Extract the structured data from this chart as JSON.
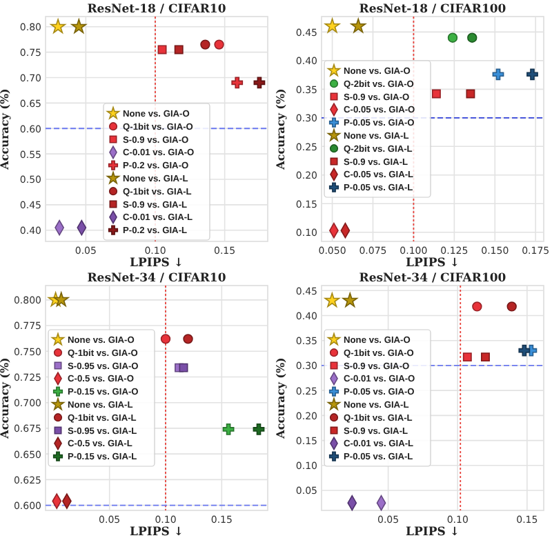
{
  "chart_data": [
    {
      "type": "scatter",
      "title": "ResNet-18 / CIFAR10",
      "xlabel": "LPIPS ↓",
      "ylabel": "Accuracy (%)",
      "grid": true,
      "legend": "bottom",
      "xlim": [
        0.021,
        0.181
      ],
      "ylim": [
        0.378,
        0.82
      ],
      "xticks": [
        0.05,
        {
          "value": 0.1,
          "label": "0.10"
        },
        0.15
      ],
      "yticks": [
        {
          "value": 0.4,
          "label": "0.40"
        },
        0.45,
        {
          "value": 0.5,
          "label": "0.50"
        },
        0.55,
        {
          "value": 0.6,
          "label": "0.60"
        },
        0.65,
        {
          "value": 0.7,
          "label": "0.70"
        },
        0.75,
        {
          "value": 0.8,
          "label": "0.80"
        }
      ],
      "ref_lines": [
        {
          "axis": "x",
          "value": 0.1,
          "color": "#e8403a",
          "line_style": "dotted"
        },
        {
          "axis": "y",
          "value": 0.6,
          "color": "#6a78f0",
          "line_style": "dashed"
        }
      ],
      "series": [
        {
          "name": "None vs. GIA-O",
          "marker": "star",
          "color": "#ffd21f",
          "x": [
            0.03
          ],
          "values": [
            0.8
          ]
        },
        {
          "name": "Q-1bit vs. GIA-O",
          "marker": "circle",
          "color": "#e8333a",
          "x": [
            0.146
          ],
          "values": [
            0.765
          ]
        },
        {
          "name": "S-0.9 vs. GIA-O",
          "marker": "square",
          "color": "#e8333a",
          "x": [
            0.105
          ],
          "values": [
            0.755
          ]
        },
        {
          "name": "C-0.01 vs. GIA-O",
          "marker": "diamond",
          "color": "#9b6fc8",
          "x": [
            0.031
          ],
          "values": [
            0.405
          ]
        },
        {
          "name": "P-0.2 vs. GIA-O",
          "marker": "cross",
          "color": "#e8333a",
          "x": [
            0.159
          ],
          "values": [
            0.69
          ]
        },
        {
          "name": "None vs. GIA-L",
          "marker": "star",
          "color": "#b8960c",
          "x": [
            0.045
          ],
          "values": [
            0.8
          ]
        },
        {
          "name": "Q-1bit vs. GIA-L",
          "marker": "circle",
          "color": "#b52525",
          "x": [
            0.136
          ],
          "values": [
            0.765
          ]
        },
        {
          "name": "S-0.9 vs. GIA-L",
          "marker": "square",
          "color": "#b52525",
          "x": [
            0.117
          ],
          "values": [
            0.755
          ]
        },
        {
          "name": "C-0.01 vs. GIA-L",
          "marker": "diamond",
          "color": "#7a4fa8",
          "x": [
            0.047
          ],
          "values": [
            0.405
          ]
        },
        {
          "name": "P-0.2 vs. GIA-L",
          "marker": "cross",
          "color": "#8b1a1a",
          "x": [
            0.175
          ],
          "values": [
            0.69
          ]
        }
      ]
    },
    {
      "type": "scatter",
      "title": "ResNet-18 / CIFAR100",
      "xlabel": "LPIPS ↓",
      "ylabel": "Accuracy (%)",
      "grid": true,
      "legend": "left",
      "xlim": [
        0.0434,
        0.18
      ],
      "ylim": [
        0.084,
        0.477
      ],
      "xticks": [
        {
          "value": 0.05,
          "label": "0.050"
        },
        0.075,
        {
          "value": 0.1,
          "label": "0.100"
        },
        0.125,
        {
          "value": 0.15,
          "label": "0.150"
        },
        0.175
      ],
      "yticks": [
        {
          "value": 0.1,
          "label": "0.10"
        },
        0.15,
        {
          "value": 0.2,
          "label": "0.20"
        },
        0.25,
        {
          "value": 0.3,
          "label": "0.30"
        },
        0.35,
        {
          "value": 0.4,
          "label": "0.40"
        },
        0.45
      ],
      "ref_lines": [
        {
          "axis": "x",
          "value": 0.1,
          "color": "#e8403a",
          "line_style": "dotted"
        },
        {
          "axis": "y",
          "value": 0.3,
          "color": "#3040d8",
          "line_style": "dashed"
        }
      ],
      "series": [
        {
          "name": "None vs. GIA-O",
          "marker": "star",
          "color": "#ffd21f",
          "x": [
            0.05
          ],
          "values": [
            0.46
          ]
        },
        {
          "name": "Q-2bit vs. GIA-O",
          "marker": "circle",
          "color": "#3cb043",
          "x": [
            0.124
          ],
          "values": [
            0.44
          ]
        },
        {
          "name": "S-0.9 vs. GIA-O",
          "marker": "square",
          "color": "#e8333a",
          "x": [
            0.114
          ],
          "values": [
            0.342
          ]
        },
        {
          "name": "C-0.05 vs. GIA-O",
          "marker": "diamond",
          "color": "#e8333a",
          "x": [
            0.051
          ],
          "values": [
            0.103
          ]
        },
        {
          "name": "P-0.05 vs. GIA-O",
          "marker": "cross",
          "color": "#3a8fd8",
          "x": [
            0.152
          ],
          "values": [
            0.376
          ]
        },
        {
          "name": "None vs. GIA-L",
          "marker": "star",
          "color": "#b8960c",
          "x": [
            0.066
          ],
          "values": [
            0.46
          ]
        },
        {
          "name": "Q-2bit vs. GIA-L",
          "marker": "circle",
          "color": "#2a8a30",
          "x": [
            0.136
          ],
          "values": [
            0.44
          ]
        },
        {
          "name": "S-0.9 vs. GIA-L",
          "marker": "square",
          "color": "#c82828",
          "x": [
            0.135
          ],
          "values": [
            0.342
          ]
        },
        {
          "name": "C-0.05 vs. GIA-L",
          "marker": "diamond",
          "color": "#c82828",
          "x": [
            0.058
          ],
          "values": [
            0.103
          ]
        },
        {
          "name": "P-0.05 vs. GIA-L",
          "marker": "cross",
          "color": "#1f4e79",
          "x": [
            0.173
          ],
          "values": [
            0.376
          ]
        }
      ]
    },
    {
      "type": "scatter",
      "title": "ResNet-34 / CIFAR10",
      "xlabel": "LPIPS ↓",
      "ylabel": "Accuracy (%)",
      "grid": true,
      "legend": "left",
      "xlim": [
        -0.007,
        0.191
      ],
      "ylim": [
        0.595,
        0.814
      ],
      "xticks": [
        0.05,
        {
          "value": 0.1,
          "label": "0.10"
        },
        0.15
      ],
      "yticks": [
        {
          "value": 0.6,
          "label": "0.600"
        },
        0.625,
        {
          "value": 0.65,
          "label": "0.650"
        },
        0.675,
        {
          "value": 0.7,
          "label": "0.700"
        },
        0.725,
        {
          "value": 0.75,
          "label": "0.750"
        },
        0.775,
        {
          "value": 0.8,
          "label": "0.800"
        }
      ],
      "ref_lines": [
        {
          "axis": "x",
          "value": 0.1,
          "color": "#e8403a",
          "line_style": "dotted"
        },
        {
          "axis": "y",
          "value": 0.6,
          "color": "#6a78f0",
          "line_style": "dashed"
        }
      ],
      "series": [
        {
          "name": "None vs. GIA-O",
          "marker": "star",
          "color": "#ffd21f",
          "x": [
            0.002
          ],
          "values": [
            0.8
          ]
        },
        {
          "name": "Q-1bit vs. GIA-O",
          "marker": "circle",
          "color": "#e8333a",
          "x": [
            0.1
          ],
          "values": [
            0.762
          ]
        },
        {
          "name": "S-0.95 vs. GIA-O",
          "marker": "square",
          "color": "#9b6fc8",
          "x": [
            0.112
          ],
          "values": [
            0.734
          ]
        },
        {
          "name": "C-0.5 vs. GIA-O",
          "marker": "diamond",
          "color": "#e8333a",
          "x": [
            0.003
          ],
          "values": [
            0.604
          ]
        },
        {
          "name": "P-0.15 vs. GIA-O",
          "marker": "cross",
          "color": "#3cb043",
          "x": [
            0.156
          ],
          "values": [
            0.674
          ]
        },
        {
          "name": "None vs. GIA-L",
          "marker": "star",
          "color": "#b8960c",
          "x": [
            0.007
          ],
          "values": [
            0.8
          ]
        },
        {
          "name": "Q-1bit vs. GIA-L",
          "marker": "circle",
          "color": "#b52525",
          "x": [
            0.12
          ],
          "values": [
            0.762
          ]
        },
        {
          "name": "S-0.95 vs. GIA-L",
          "marker": "square",
          "color": "#7a4fa8",
          "x": [
            0.116
          ],
          "values": [
            0.734
          ]
        },
        {
          "name": "C-0.5 vs. GIA-L",
          "marker": "diamond",
          "color": "#b52525",
          "x": [
            0.012
          ],
          "values": [
            0.604
          ]
        },
        {
          "name": "P-0.15 vs. GIA-L",
          "marker": "cross",
          "color": "#1e6b23",
          "x": [
            0.183
          ],
          "values": [
            0.674
          ]
        }
      ]
    },
    {
      "type": "scatter",
      "title": "ResNet-34 / CIFAR100",
      "xlabel": "LPIPS ↓",
      "ylabel": "Accuracy (%)",
      "grid": true,
      "legend": "left",
      "xlim": [
        0.002,
        0.162
      ],
      "ylim": [
        0.01,
        0.46
      ],
      "xticks": [
        0.05,
        {
          "value": 0.1,
          "label": "0.10"
        },
        0.15
      ],
      "yticks": [
        0.05,
        {
          "value": 0.1,
          "label": "0.10"
        },
        0.15,
        {
          "value": 0.2,
          "label": "0.20"
        },
        0.25,
        {
          "value": 0.3,
          "label": "0.30"
        },
        0.35,
        {
          "value": 0.4,
          "label": "0.40"
        },
        0.45
      ],
      "ref_lines": [
        {
          "axis": "x",
          "value": 0.102,
          "color": "#e8403a",
          "line_style": "dotted"
        },
        {
          "axis": "y",
          "value": 0.3,
          "color": "#6a78f0",
          "line_style": "dashed"
        }
      ],
      "series": [
        {
          "name": "None vs. GIA-O",
          "marker": "star",
          "color": "#ffd21f",
          "x": [
            0.0096
          ],
          "values": [
            0.43
          ]
        },
        {
          "name": "Q-1bit vs. GIA-O",
          "marker": "circle",
          "color": "#e8333a",
          "x": [
            0.114
          ],
          "values": [
            0.418
          ]
        },
        {
          "name": "S-0.9 vs. GIA-O",
          "marker": "square",
          "color": "#e8333a",
          "x": [
            0.107
          ],
          "values": [
            0.317
          ]
        },
        {
          "name": "C-0.01 vs. GIA-O",
          "marker": "diamond",
          "color": "#9b6fc8",
          "x": [
            0.045
          ],
          "values": [
            0.025
          ]
        },
        {
          "name": "P-0.05 vs. GIA-O",
          "marker": "cross",
          "color": "#3a8fd8",
          "x": [
            0.153
          ],
          "values": [
            0.33
          ]
        },
        {
          "name": "None vs. GIA-L",
          "marker": "star",
          "color": "#b8960c",
          "x": [
            0.0225
          ],
          "values": [
            0.43
          ]
        },
        {
          "name": "Q-1bit vs. GIA-L",
          "marker": "circle",
          "color": "#b52525",
          "x": [
            0.139
          ],
          "values": [
            0.418
          ]
        },
        {
          "name": "S-0.9 vs. GIA-L",
          "marker": "square",
          "color": "#c82828",
          "x": [
            0.12
          ],
          "values": [
            0.317
          ]
        },
        {
          "name": "C-0.01 vs. GIA-L",
          "marker": "diamond",
          "color": "#7a4fa8",
          "x": [
            0.024
          ],
          "values": [
            0.025
          ]
        },
        {
          "name": "P-0.05 vs. GIA-L",
          "marker": "cross",
          "color": "#1f4e79",
          "x": [
            0.148
          ],
          "values": [
            0.33
          ]
        }
      ]
    }
  ]
}
